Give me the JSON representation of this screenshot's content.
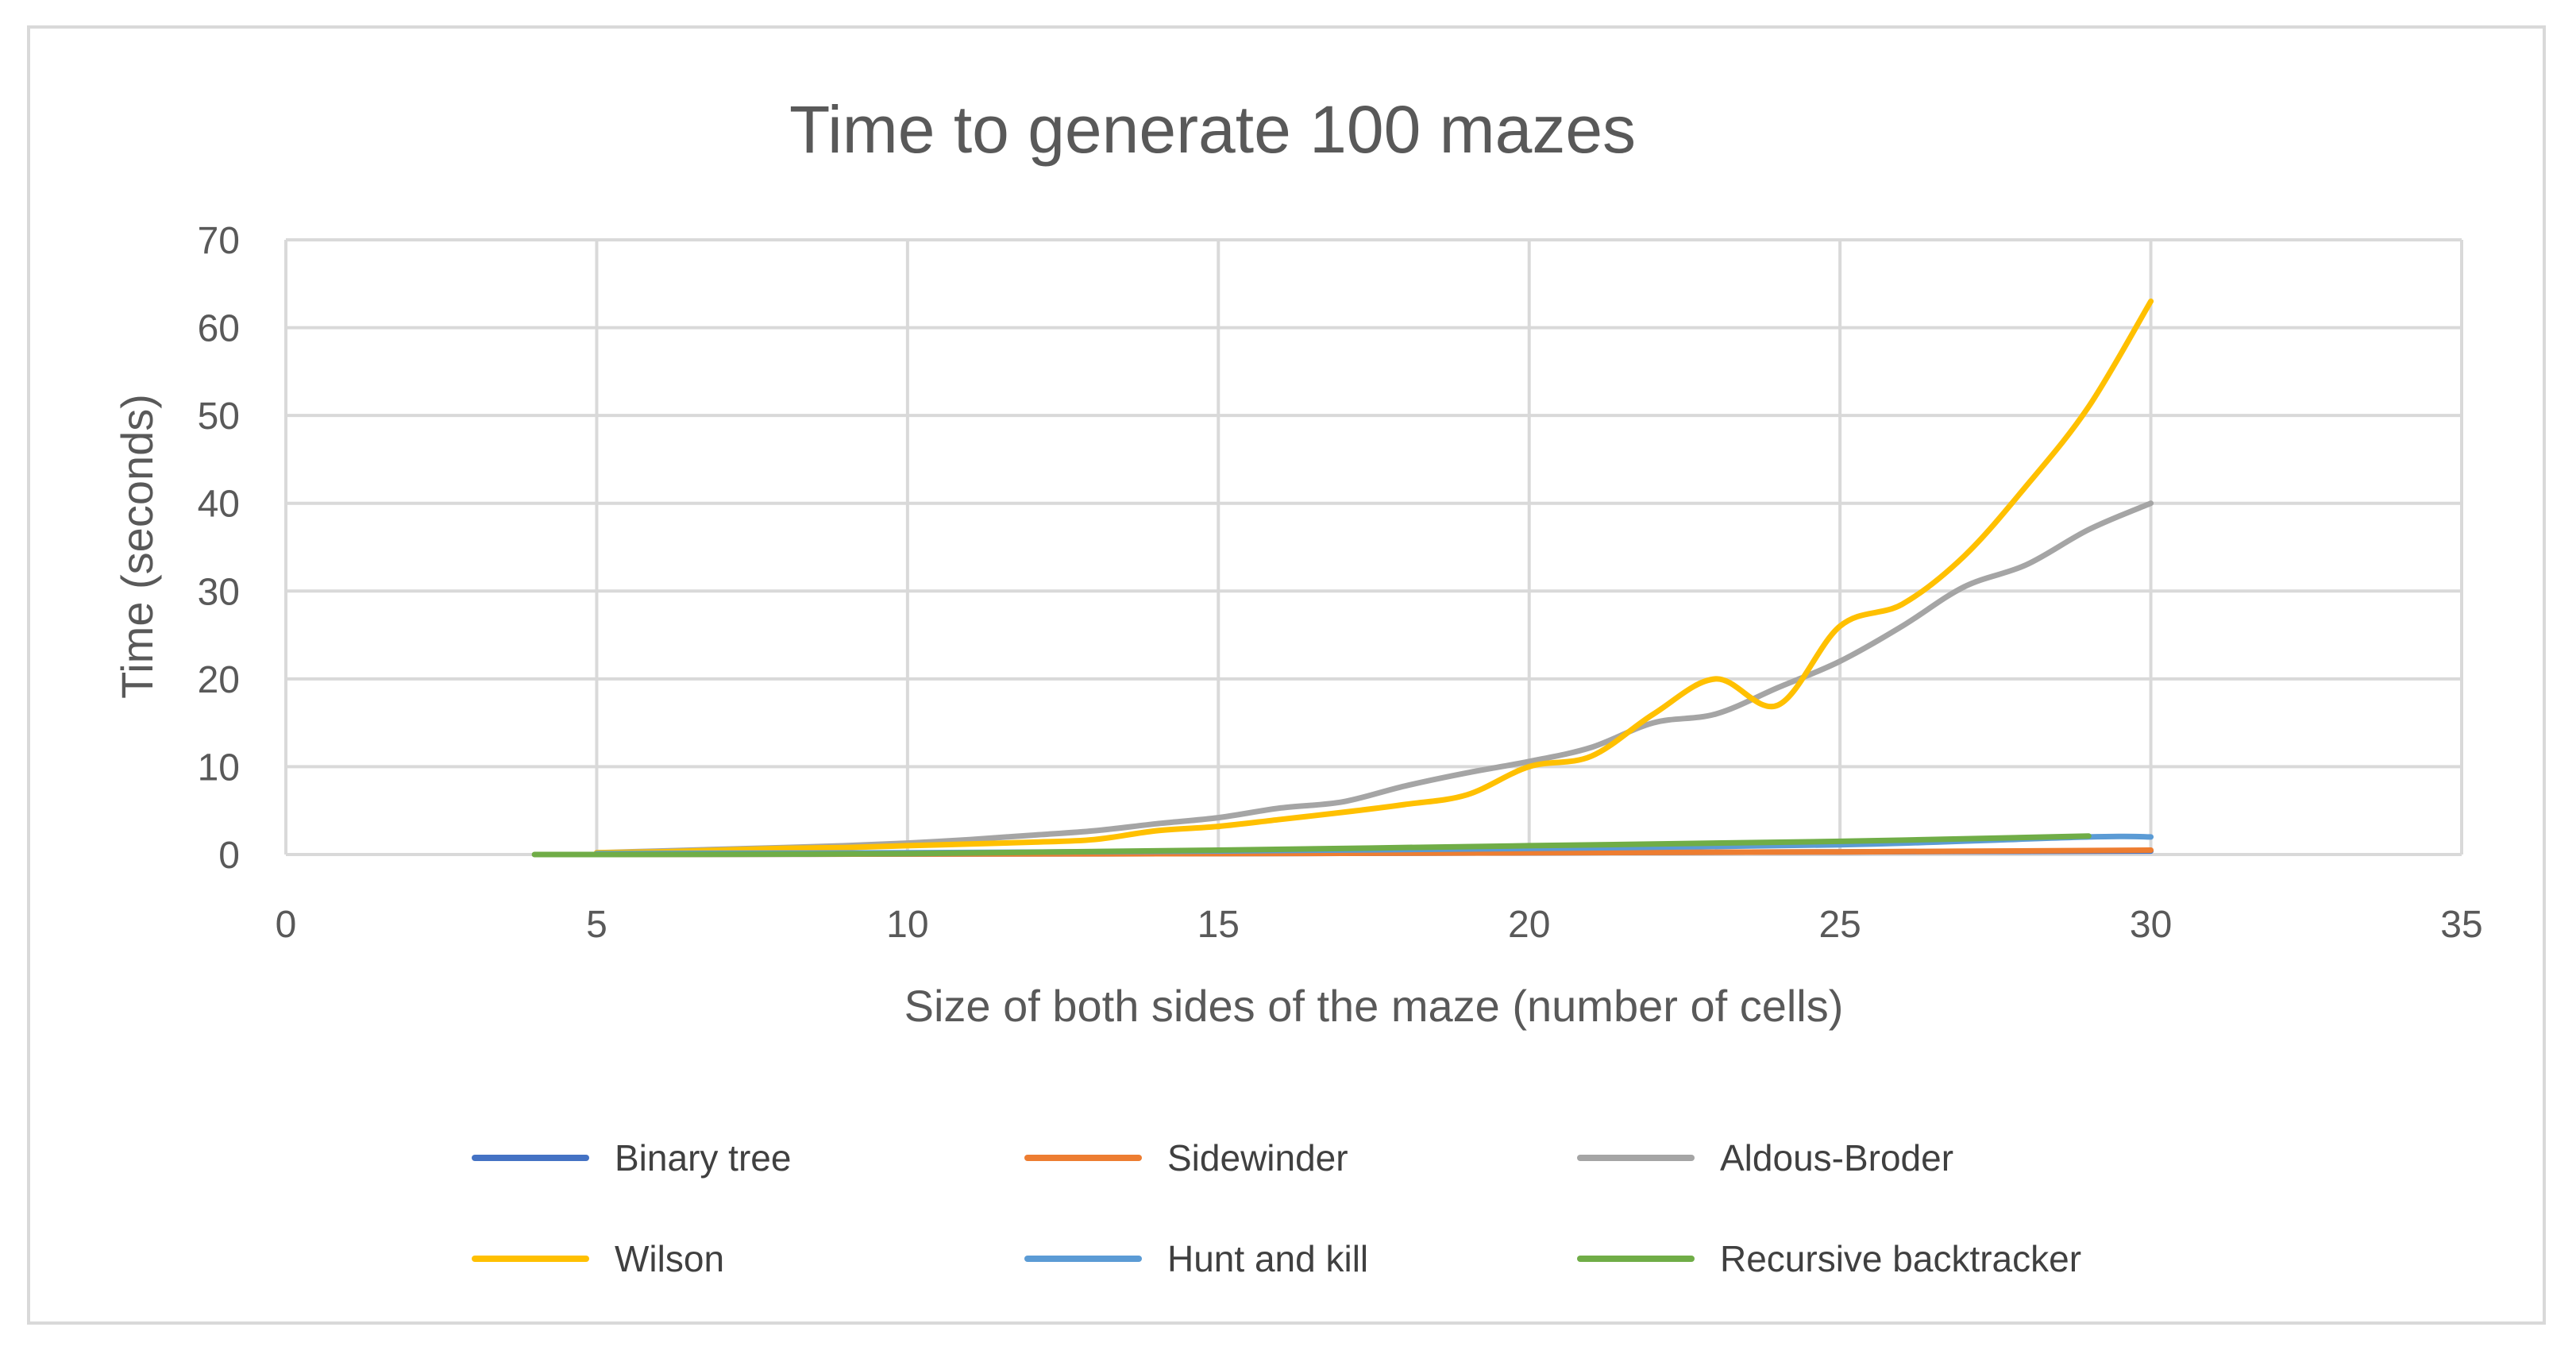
{
  "chart_data": {
    "type": "line",
    "title": "Time to generate 100 mazes",
    "xlabel": "Size of both sides of the maze (number of cells)",
    "ylabel": "Time (seconds)",
    "xlim": [
      0,
      35
    ],
    "ylim": [
      0,
      70
    ],
    "xticks": [
      0,
      5,
      10,
      15,
      20,
      25,
      30,
      35
    ],
    "yticks": [
      0,
      10,
      20,
      30,
      40,
      50,
      60,
      70
    ],
    "grid": true,
    "legend_position": "bottom",
    "series": [
      {
        "name": "Binary tree",
        "color": "#4472c4",
        "x": [
          5,
          10,
          15,
          20,
          25,
          30
        ],
        "y": [
          0.0,
          0.05,
          0.1,
          0.2,
          0.3,
          0.4
        ]
      },
      {
        "name": "Sidewinder",
        "color": "#ed7d31",
        "x": [
          5,
          10,
          15,
          20,
          25,
          30
        ],
        "y": [
          0.0,
          0.05,
          0.1,
          0.2,
          0.3,
          0.5
        ]
      },
      {
        "name": "Aldous-Broder",
        "color": "#a5a5a5",
        "x": [
          5,
          6,
          7,
          8,
          9,
          10,
          11,
          12,
          13,
          14,
          15,
          16,
          17,
          18,
          19,
          20,
          21,
          22,
          23,
          24,
          25,
          26,
          27,
          28,
          29,
          30
        ],
        "y": [
          0.2,
          0.4,
          0.6,
          0.8,
          1.0,
          1.3,
          1.7,
          2.2,
          2.7,
          3.5,
          4.2,
          5.3,
          6.0,
          7.8,
          9.3,
          10.6,
          12.2,
          15.0,
          16.0,
          19.0,
          22.0,
          26.0,
          30.5,
          33.0,
          37.0,
          40.0
        ]
      },
      {
        "name": "Wilson",
        "color": "#ffc000",
        "x": [
          5,
          6,
          7,
          8,
          9,
          10,
          11,
          12,
          13,
          14,
          15,
          16,
          17,
          18,
          19,
          20,
          21,
          22,
          23,
          24,
          25,
          26,
          27,
          28,
          29,
          30
        ],
        "y": [
          0.2,
          0.3,
          0.5,
          0.7,
          0.8,
          1.0,
          1.2,
          1.4,
          1.7,
          2.7,
          3.2,
          4.0,
          4.8,
          5.7,
          6.8,
          10.0,
          11.2,
          16.0,
          20.0,
          17.0,
          26.0,
          28.5,
          34.0,
          42.0,
          51.0,
          63.0
        ]
      },
      {
        "name": "Hunt and kill",
        "color": "#5b9bd5",
        "x": [
          5,
          10,
          15,
          20,
          25,
          29,
          30
        ],
        "y": [
          0.1,
          0.2,
          0.4,
          0.7,
          1.1,
          2.0,
          2.0
        ]
      },
      {
        "name": "Recursive backtracker",
        "color": "#70ad47",
        "x": [
          4,
          5,
          10,
          15,
          20,
          25,
          29
        ],
        "y": [
          0.0,
          0.0,
          0.1,
          0.5,
          1.0,
          1.5,
          2.1
        ]
      }
    ]
  }
}
